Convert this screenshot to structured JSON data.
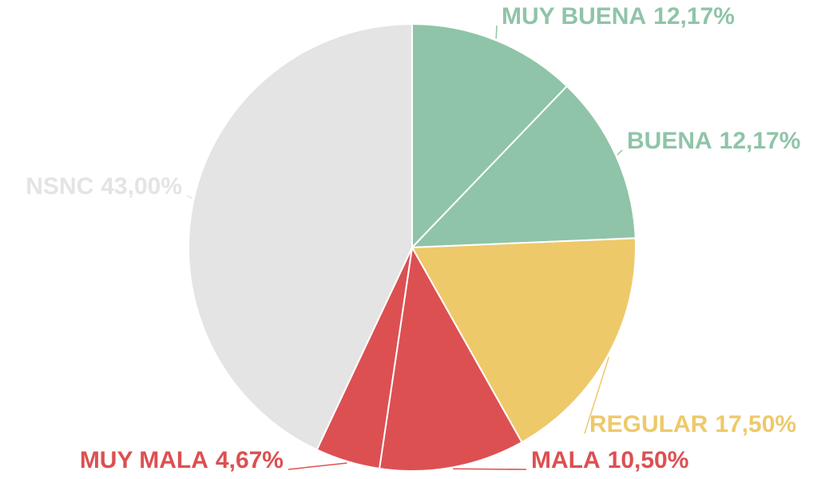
{
  "chart_data": {
    "type": "pie",
    "categories": [
      "MUY BUENA",
      "BUENA",
      "REGULAR",
      "MALA",
      "MUY MALA",
      "NSNC"
    ],
    "values": [
      12.17,
      12.17,
      17.5,
      10.5,
      4.67,
      43.0
    ],
    "value_labels": [
      "12,17%",
      "12,17%",
      "17,50%",
      "10,50%",
      "4,67%",
      "43,00%"
    ],
    "colors": [
      "#8fc4a8",
      "#8fc4a8",
      "#eec96a",
      "#dc5052",
      "#dc5052",
      "#e4e4e4"
    ]
  }
}
